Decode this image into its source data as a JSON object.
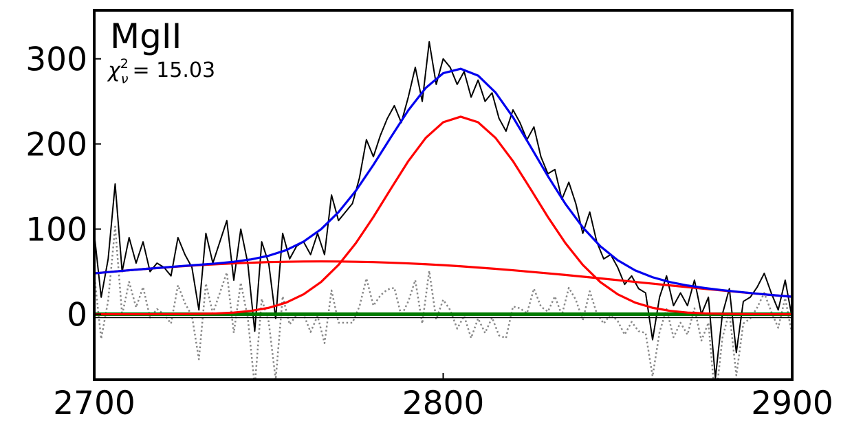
{
  "chart_data": {
    "type": "line",
    "label": "MgII",
    "stat": {
      "symbol": "χ",
      "sup": "2",
      "sub": "ν",
      "text": "= 15.03"
    },
    "xlim": [
      2700,
      2900
    ],
    "ylim": [
      -77,
      357
    ],
    "xticks": [
      2700,
      2800,
      2900
    ],
    "yticks": [
      0,
      100,
      200,
      300
    ],
    "hlines": [
      {
        "y": -4,
        "color": "#000000"
      },
      {
        "y": 0,
        "color": "#007a00"
      }
    ],
    "series": [
      {
        "color": "#888888",
        "style": "dotted",
        "x": [
          2700,
          2702,
          2704,
          2706,
          2708,
          2710,
          2712,
          2714,
          2716,
          2718,
          2720,
          2722,
          2724,
          2726,
          2728,
          2730,
          2732,
          2734,
          2736,
          2738,
          2740,
          2742,
          2744,
          2746,
          2748,
          2750,
          2752,
          2754,
          2756,
          2758,
          2760,
          2762,
          2764,
          2766,
          2768,
          2770,
          2772,
          2774,
          2776,
          2778,
          2780,
          2782,
          2784,
          2786,
          2788,
          2790,
          2792,
          2794,
          2796,
          2798,
          2800,
          2802,
          2804,
          2806,
          2808,
          2810,
          2812,
          2814,
          2816,
          2818,
          2820,
          2822,
          2824,
          2826,
          2828,
          2830,
          2832,
          2834,
          2836,
          2838,
          2840,
          2842,
          2844,
          2846,
          2848,
          2850,
          2852,
          2854,
          2856,
          2858,
          2860,
          2862,
          2864,
          2866,
          2868,
          2870,
          2872,
          2874,
          2876,
          2878,
          2880,
          2882,
          2884,
          2886,
          2888,
          2890,
          2892,
          2894,
          2896,
          2898,
          2900
        ],
        "values": [
          47,
          -29,
          16,
          103,
          -1,
          38,
          8,
          32,
          -4,
          6,
          0,
          -11,
          34,
          13,
          -2,
          -53,
          36,
          1,
          25,
          49,
          -22,
          37,
          -4,
          -85,
          18,
          -9,
          -77,
          21,
          -12,
          -1,
          0,
          -21,
          -2,
          -34,
          28,
          -10,
          -10,
          -10,
          9,
          42,
          10,
          22,
          29,
          31,
          -2,
          15,
          40,
          -11,
          51,
          -6,
          17,
          5,
          -17,
          -2,
          -28,
          -5,
          -22,
          -4,
          -25,
          -28,
          9,
          7,
          1,
          30,
          9,
          3,
          21,
          -1,
          31,
          17,
          -7,
          27,
          1,
          -11,
          0,
          -8,
          -24,
          -9,
          -20,
          -22,
          -73,
          -21,
          6,
          -27,
          -10,
          -24,
          7,
          -31,
          -10,
          -104,
          -28,
          3,
          -72,
          -11,
          -5,
          8,
          25,
          3,
          -16,
          19,
          -25
        ]
      },
      {
        "color": "#000000",
        "style": "solid",
        "x": [
          2700,
          2702,
          2704,
          2706,
          2708,
          2710,
          2712,
          2714,
          2716,
          2718,
          2720,
          2722,
          2724,
          2726,
          2728,
          2730,
          2732,
          2734,
          2736,
          2738,
          2740,
          2742,
          2744,
          2746,
          2748,
          2750,
          2752,
          2754,
          2756,
          2758,
          2760,
          2762,
          2764,
          2766,
          2768,
          2770,
          2772,
          2774,
          2776,
          2778,
          2780,
          2782,
          2784,
          2786,
          2788,
          2790,
          2792,
          2794,
          2796,
          2798,
          2800,
          2802,
          2804,
          2806,
          2808,
          2810,
          2812,
          2814,
          2816,
          2818,
          2820,
          2822,
          2824,
          2826,
          2828,
          2830,
          2832,
          2834,
          2836,
          2838,
          2840,
          2842,
          2844,
          2846,
          2848,
          2850,
          2852,
          2854,
          2856,
          2858,
          2860,
          2862,
          2864,
          2866,
          2868,
          2870,
          2872,
          2874,
          2876,
          2878,
          2880,
          2882,
          2884,
          2886,
          2888,
          2890,
          2892,
          2894,
          2896,
          2898,
          2900
        ],
        "values": [
          95,
          20,
          65,
          153,
          50,
          90,
          60,
          85,
          50,
          60,
          55,
          45,
          90,
          70,
          55,
          5,
          95,
          60,
          85,
          110,
          40,
          100,
          60,
          -20,
          85,
          60,
          -5,
          95,
          65,
          80,
          85,
          70,
          95,
          70,
          140,
          110,
          120,
          130,
          160,
          205,
          185,
          210,
          230,
          245,
          225,
          255,
          290,
          250,
          320,
          270,
          300,
          290,
          270,
          285,
          255,
          275,
          250,
          260,
          230,
          215,
          240,
          225,
          205,
          220,
          185,
          165,
          170,
          135,
          155,
          130,
          95,
          120,
          85,
          65,
          70,
          55,
          35,
          45,
          30,
          25,
          -30,
          20,
          45,
          10,
          25,
          10,
          40,
          0,
          20,
          -75,
          0,
          30,
          -45,
          15,
          20,
          32,
          48,
          25,
          5,
          40,
          -5
        ]
      },
      {
        "color": "#ff0000",
        "style": "solid",
        "x": [
          2700,
          2705,
          2710,
          2715,
          2720,
          2725,
          2730,
          2735,
          2740,
          2745,
          2750,
          2755,
          2760,
          2765,
          2770,
          2775,
          2780,
          2785,
          2790,
          2795,
          2800,
          2805,
          2810,
          2815,
          2820,
          2825,
          2830,
          2835,
          2840,
          2845,
          2850,
          2855,
          2860,
          2865,
          2870,
          2875,
          2880,
          2885,
          2890,
          2895,
          2900
        ],
        "values": [
          0,
          0,
          0,
          0,
          0.1,
          0.2,
          0.4,
          0.9,
          1.9,
          3.9,
          7.5,
          13.6,
          23.4,
          37.8,
          57.9,
          83.6,
          114.2,
          147.3,
          179.8,
          207.1,
          225.5,
          232,
          225.5,
          207.1,
          179.8,
          147.3,
          114.2,
          83.6,
          57.9,
          37.8,
          23.4,
          13.6,
          7.5,
          3.9,
          1.9,
          0.9,
          0.4,
          0.2,
          0.1,
          0,
          0
        ]
      },
      {
        "color": "#ff0000",
        "style": "solid",
        "x": [
          2700,
          2705,
          2710,
          2715,
          2720,
          2725,
          2730,
          2735,
          2740,
          2745,
          2750,
          2755,
          2760,
          2765,
          2770,
          2775,
          2780,
          2785,
          2790,
          2795,
          2800,
          2805,
          2810,
          2815,
          2820,
          2825,
          2830,
          2835,
          2840,
          2845,
          2850,
          2855,
          2860,
          2865,
          2870,
          2875,
          2880,
          2885,
          2890,
          2895,
          2900
        ],
        "values": [
          48.0,
          49.8,
          51.6,
          53.3,
          54.8,
          56.3,
          57.6,
          58.7,
          59.7,
          60.5,
          61.2,
          61.6,
          61.9,
          62.0,
          61.9,
          61.6,
          61.2,
          60.5,
          59.7,
          58.7,
          57.6,
          56.3,
          54.8,
          53.3,
          51.6,
          49.8,
          48.0,
          46.1,
          44.1,
          42.1,
          40.0,
          37.9,
          35.9,
          33.8,
          31.8,
          29.8,
          27.8,
          25.9,
          24.0,
          22.2,
          20.5
        ]
      },
      {
        "color": "#0000ee",
        "style": "solid",
        "x": [
          2700,
          2705,
          2710,
          2715,
          2720,
          2725,
          2730,
          2735,
          2740,
          2745,
          2750,
          2755,
          2760,
          2765,
          2770,
          2775,
          2780,
          2785,
          2790,
          2795,
          2800,
          2805,
          2810,
          2815,
          2820,
          2825,
          2830,
          2835,
          2840,
          2845,
          2850,
          2855,
          2860,
          2865,
          2870,
          2875,
          2880,
          2885,
          2890,
          2895,
          2900
        ],
        "values": [
          48.0,
          49.8,
          51.6,
          53.3,
          54.9,
          56.5,
          58.0,
          59.6,
          61.6,
          64.4,
          68.7,
          75.2,
          85.3,
          99.8,
          119.8,
          145.2,
          175.4,
          207.8,
          239.5,
          265.8,
          283.1,
          288.3,
          280.3,
          260.4,
          231.4,
          197.1,
          162.2,
          129.7,
          102.0,
          79.9,
          63.4,
          51.5,
          43.4,
          37.7,
          33.7,
          30.7,
          28.2,
          26.1,
          24.1,
          22.2,
          20.5
        ]
      }
    ]
  }
}
